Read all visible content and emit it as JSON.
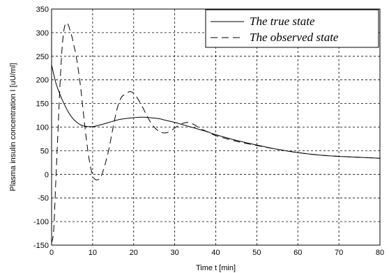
{
  "chart_data": {
    "type": "line",
    "title": "",
    "xlabel": "Time t [min]",
    "ylabel": "Plasma insulin concentration I [uU/ml]",
    "xlim": [
      0,
      80
    ],
    "ylim": [
      -150,
      350
    ],
    "xticks": [
      "0",
      "10",
      "20",
      "30",
      "40",
      "50",
      "60",
      "70",
      "80"
    ],
    "yticks": [
      "350",
      "300",
      "250",
      "200",
      "150",
      "100",
      "50",
      "0",
      "-50",
      "-100",
      "-150"
    ],
    "grid": true,
    "legend_position": "top-right",
    "series": [
      {
        "name": "The true state",
        "style": "solid",
        "color": "#000000",
        "x": [
          0,
          1,
          2,
          3,
          4,
          5,
          6,
          7,
          8,
          10,
          12,
          14,
          16,
          18,
          20,
          22,
          24,
          26,
          28,
          30,
          32,
          34,
          36,
          38,
          40,
          45,
          50,
          55,
          60,
          65,
          70,
          75,
          80
        ],
        "y": [
          232,
          195,
          170,
          150,
          133,
          120,
          111,
          105,
          102,
          101,
          105,
          110,
          115,
          118,
          120,
          121,
          120,
          118,
          114,
          110,
          105,
          100,
          95,
          90,
          84,
          72,
          62,
          53,
          46,
          41,
          38,
          36,
          34
        ]
      },
      {
        "name": "The observed state",
        "style": "dashed",
        "color": "#000000",
        "x": [
          0,
          0.5,
          1,
          1.5,
          2,
          2.5,
          3,
          3.5,
          4,
          4.5,
          5,
          5.5,
          6,
          7,
          8,
          9,
          10,
          11,
          12,
          13,
          14,
          15,
          16,
          17,
          18,
          19,
          20,
          21,
          22,
          23,
          24,
          25,
          26,
          27,
          28,
          29,
          30,
          31,
          32,
          33,
          34,
          35,
          36,
          38,
          40,
          45,
          50,
          55,
          60,
          65,
          70,
          75,
          80
        ],
        "y": [
          -145,
          -120,
          -20,
          80,
          180,
          260,
          305,
          320,
          318,
          305,
          290,
          270,
          250,
          190,
          110,
          40,
          -2,
          -12,
          -5,
          20,
          55,
          100,
          140,
          163,
          170,
          175,
          172,
          160,
          145,
          128,
          112,
          100,
          92,
          88,
          88,
          92,
          98,
          104,
          108,
          110,
          108,
          104,
          98,
          90,
          82,
          70,
          61,
          53,
          46,
          41,
          38,
          36,
          34
        ]
      }
    ]
  }
}
